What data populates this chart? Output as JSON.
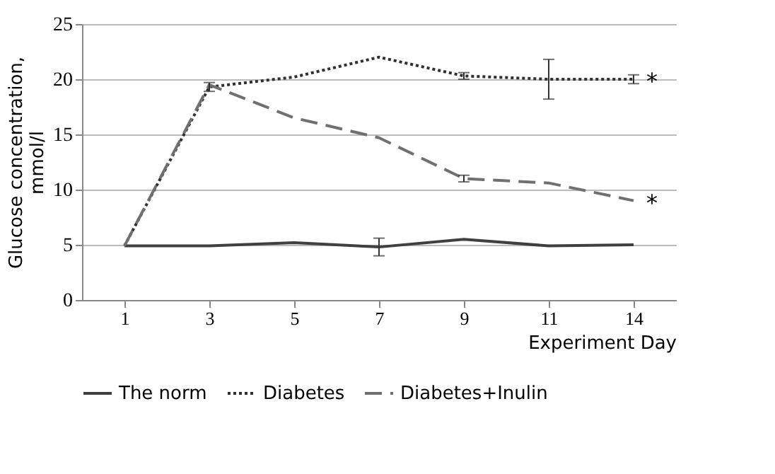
{
  "chart_data": {
    "type": "line",
    "xlabel": "Experiment Day",
    "ylabel": "Glucose concentration, mmol/l",
    "categories": [
      "1",
      "3",
      "5",
      "7",
      "9",
      "11",
      "14"
    ],
    "ylim": [
      0,
      25
    ],
    "yticks": [
      0,
      5,
      10,
      15,
      20,
      25
    ],
    "grid": "y",
    "legend": "bottom",
    "marker": "none",
    "series": [
      {
        "name": "The norm",
        "color": "#404040",
        "line_style": "solid",
        "values": [
          4.9,
          4.9,
          5.2,
          4.8,
          5.5,
          4.9,
          5.0
        ],
        "errors": [
          null,
          null,
          null,
          0.8,
          null,
          null,
          null
        ]
      },
      {
        "name": "Diabetes",
        "color": "#303030",
        "line_style": "dotted",
        "values": [
          4.9,
          19.3,
          20.2,
          22.0,
          20.3,
          20.0,
          20.0
        ],
        "errors": [
          null,
          0.4,
          null,
          null,
          0.3,
          1.8,
          0.4
        ]
      },
      {
        "name": "Diabetes+Inulin",
        "color": "#707070",
        "line_style": "dashed",
        "values": [
          4.9,
          19.5,
          16.5,
          14.7,
          11.0,
          10.6,
          9.0
        ],
        "errors": [
          null,
          null,
          null,
          null,
          0.3,
          null,
          null
        ]
      }
    ],
    "annotations": [
      {
        "text": "*",
        "x": "14",
        "y": 20.0
      },
      {
        "text": "*",
        "x": "14",
        "y": 9.0
      }
    ]
  }
}
